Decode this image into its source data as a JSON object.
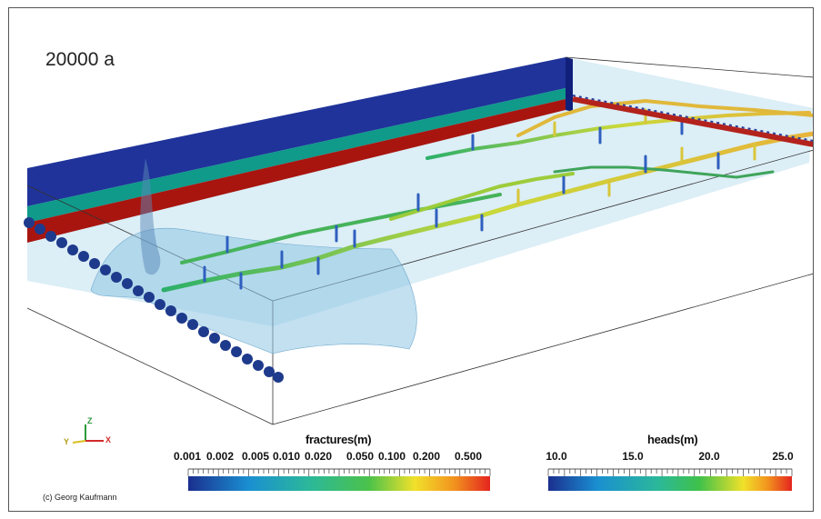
{
  "title": "20000 a",
  "credit": "(c) Georg Kaufmann",
  "axes": {
    "z": "Z",
    "y": "Y",
    "x": "X"
  },
  "fractures_colorbar": {
    "label": "fractures(m)",
    "ticks": [
      "0.001",
      "0.002",
      "0.005",
      "0.010",
      "0.020",
      "0.050",
      "0.100",
      "0.200",
      "0.500"
    ]
  },
  "heads_colorbar": {
    "label": "heads(m)",
    "ticks": [
      "10.0",
      "15.0",
      "20.0",
      "25.0"
    ]
  },
  "colors": {
    "layer_top": "#20339a",
    "layer_mid": "#0f9a8a",
    "layer_bottom": "#a8150f",
    "water": "#bfe0ef",
    "well": "#1e3a8c"
  }
}
